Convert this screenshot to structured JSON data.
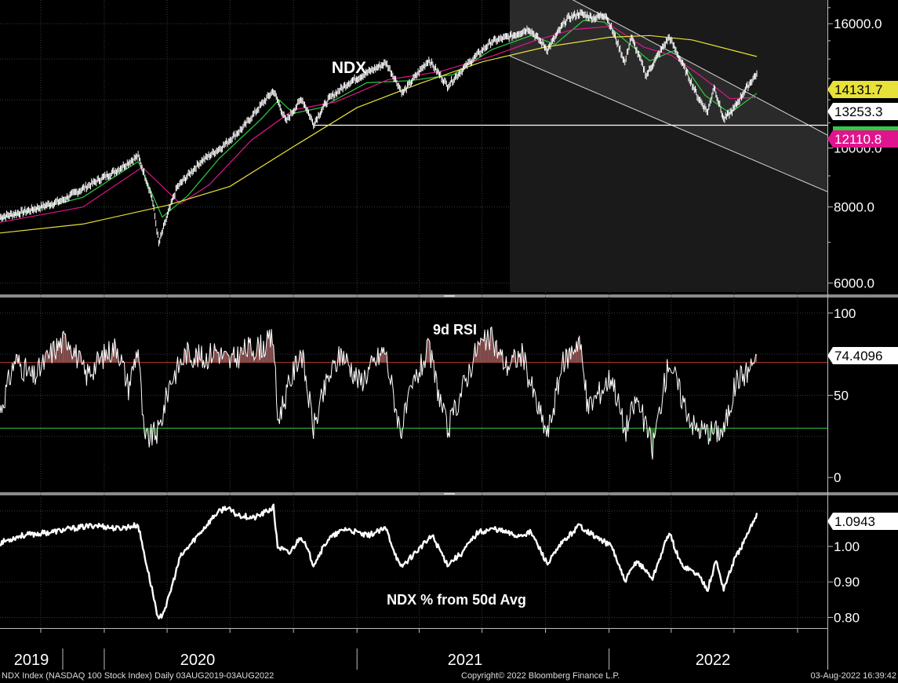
{
  "footer": {
    "left": "NDX Index (NASDAQ 100 Stock Index)  Daily 03AUG2019-03AUG2022",
    "center": "Copyright© 2022 Bloomberg Finance L.P.",
    "right": "03-Aug-2022 16:39:42"
  },
  "colors": {
    "background": "#000000",
    "price": "#ffffff",
    "ma20": "#2ecc40",
    "ma50": "#e0148c",
    "ma200": "#e8e13a",
    "rsi_upper": "#c0392b",
    "rsi_lower": "#2ecc40",
    "channel_fill": "#2a2a2a",
    "support_line": "#ffffff"
  },
  "chart_data": [
    {
      "type": "line",
      "title": "NDX",
      "x_axis": {
        "range": [
          "2019-08-03",
          "2022-08-03"
        ],
        "tick_labels": [
          "2019",
          "2020",
          "2021",
          "2022"
        ]
      },
      "y_axis": {
        "ticks": [
          "16000.0",
          "10000.0",
          "8000.0",
          "6000.0"
        ],
        "range": [
          5800,
          17500
        ],
        "scale": "log"
      },
      "series": [
        {
          "kind": "price-bars",
          "color": "#ffffff",
          "last": "13253.3",
          "points": [
            [
              "2019-08-03",
              7700
            ],
            [
              "2019-09-15",
              7900
            ],
            [
              "2019-11-01",
              8200
            ],
            [
              "2019-12-15",
              8750
            ],
            [
              "2020-01-20",
              9200
            ],
            [
              "2020-02-19",
              9700
            ],
            [
              "2020-03-10",
              8300
            ],
            [
              "2020-03-20",
              6960
            ],
            [
              "2020-04-15",
              8600
            ],
            [
              "2020-05-20",
              9500
            ],
            [
              "2020-06-20",
              10050
            ],
            [
              "2020-07-20",
              10800
            ],
            [
              "2020-09-02",
              12420
            ],
            [
              "2020-09-20",
              11050
            ],
            [
              "2020-10-13",
              12050
            ],
            [
              "2020-10-30",
              10950
            ],
            [
              "2020-11-20",
              12000
            ],
            [
              "2020-12-20",
              12800
            ],
            [
              "2021-02-12",
              13800
            ],
            [
              "2021-03-08",
              12300
            ],
            [
              "2021-04-15",
              13950
            ],
            [
              "2021-05-12",
              12650
            ],
            [
              "2021-06-15",
              13900
            ],
            [
              "2021-07-15",
              14950
            ],
            [
              "2021-08-15",
              15300
            ],
            [
              "2021-09-07",
              15700
            ],
            [
              "2021-10-04",
              14500
            ],
            [
              "2021-11-01",
              16300
            ],
            [
              "2021-11-19",
              16630
            ],
            [
              "2021-12-10",
              16350
            ],
            [
              "2021-12-27",
              16570
            ],
            [
              "2022-01-24",
              13800
            ],
            [
              "2022-02-02",
              15200
            ],
            [
              "2022-02-24",
              13150
            ],
            [
              "2022-03-29",
              15200
            ],
            [
              "2022-04-15",
              13900
            ],
            [
              "2022-05-10",
              12100
            ],
            [
              "2022-05-24",
              11450
            ],
            [
              "2022-06-02",
              12620
            ],
            [
              "2022-06-16",
              11130
            ],
            [
              "2022-07-01",
              11600
            ],
            [
              "2022-07-20",
              12600
            ],
            [
              "2022-08-03",
              13253.3
            ]
          ]
        },
        {
          "name": "",
          "kind": "ma20",
          "color": "#2ecc40",
          "points": [
            [
              "2019-08-03",
              7650
            ],
            [
              "2019-12-01",
              8300
            ],
            [
              "2020-02-19",
              9500
            ],
            [
              "2020-03-25",
              7700
            ],
            [
              "2020-05-01",
              8350
            ],
            [
              "2020-06-15",
              9600
            ],
            [
              "2020-08-15",
              11150
            ],
            [
              "2020-09-10",
              12000
            ],
            [
              "2020-10-01",
              11400
            ],
            [
              "2020-11-10",
              11650
            ],
            [
              "2021-01-15",
              12800
            ],
            [
              "2021-03-20",
              12900
            ],
            [
              "2021-05-20",
              13200
            ],
            [
              "2021-07-15",
              14500
            ],
            [
              "2021-09-10",
              15300
            ],
            [
              "2021-10-15",
              14800
            ],
            [
              "2021-11-25",
              16200
            ],
            [
              "2021-12-25",
              16100
            ],
            [
              "2022-01-25",
              15000
            ],
            [
              "2022-03-01",
              13900
            ],
            [
              "2022-04-05",
              14450
            ],
            [
              "2022-05-20",
              12200
            ],
            [
              "2022-06-25",
              11400
            ],
            [
              "2022-08-03",
              12300
            ]
          ]
        },
        {
          "name": "",
          "kind": "ma50",
          "color": "#e0148c",
          "last": "12110.8",
          "points": [
            [
              "2019-08-03",
              7550
            ],
            [
              "2019-12-01",
              8000
            ],
            [
              "2020-02-25",
              9300
            ],
            [
              "2020-04-20",
              8100
            ],
            [
              "2020-06-01",
              8700
            ],
            [
              "2020-08-01",
              10300
            ],
            [
              "2020-10-01",
              11550
            ],
            [
              "2020-12-01",
              11900
            ],
            [
              "2021-02-15",
              12950
            ],
            [
              "2021-05-01",
              13350
            ],
            [
              "2021-07-15",
              14150
            ],
            [
              "2021-09-15",
              15000
            ],
            [
              "2021-11-10",
              15650
            ],
            [
              "2022-01-05",
              15850
            ],
            [
              "2022-02-20",
              14650
            ],
            [
              "2022-04-01",
              14200
            ],
            [
              "2022-05-15",
              13100
            ],
            [
              "2022-06-25",
              12050
            ],
            [
              "2022-08-03",
              12110.8
            ]
          ]
        },
        {
          "name": "",
          "kind": "ma200",
          "color": "#e8e13a",
          "last": "14131.7",
          "points": [
            [
              "2019-08-03",
              7250
            ],
            [
              "2019-12-01",
              7500
            ],
            [
              "2020-04-01",
              8050
            ],
            [
              "2020-07-01",
              8650
            ],
            [
              "2020-10-01",
              10050
            ],
            [
              "2021-01-01",
              11650
            ],
            [
              "2021-04-01",
              12750
            ],
            [
              "2021-07-01",
              13850
            ],
            [
              "2021-10-01",
              14650
            ],
            [
              "2022-01-01",
              15200
            ],
            [
              "2022-03-01",
              15300
            ],
            [
              "2022-05-01",
              15050
            ],
            [
              "2022-08-03",
              14131.7
            ]
          ]
        }
      ],
      "annotations": [
        {
          "kind": "horizontal-support",
          "y": 10900,
          "from": "2020-10-30",
          "to": "2022-08-03"
        },
        {
          "kind": "downtrend-channel",
          "top": [
            [
              "2021-11-10",
              17500
            ],
            [
              "2022-08-03",
              12100
            ]
          ],
          "bottom": [
            [
              "2021-07-20",
              14500
            ],
            [
              "2022-08-03",
              9500
            ]
          ]
        }
      ]
    },
    {
      "type": "line",
      "title": "9d RSI",
      "y_axis": {
        "ticks": [
          "100",
          "50",
          "0"
        ],
        "range": [
          -8,
          108
        ]
      },
      "reference_lines": [
        {
          "y": 70,
          "color": "#c0392b"
        },
        {
          "y": 30,
          "color": "#2ecc40"
        }
      ],
      "series": [
        {
          "kind": "rsi",
          "color": "#ffffff",
          "last": "74.4096",
          "points": [
            [
              "2019-08-03",
              40
            ],
            [
              "2019-08-25",
              72
            ],
            [
              "2019-09-20",
              60
            ],
            [
              "2019-10-20",
              78
            ],
            [
              "2019-11-10",
              85
            ],
            [
              "2019-12-05",
              62
            ],
            [
              "2020-01-05",
              76
            ],
            [
              "2020-01-20",
              80
            ],
            [
              "2020-02-05",
              55
            ],
            [
              "2020-02-19",
              80
            ],
            [
              "2020-02-28",
              22
            ],
            [
              "2020-03-20",
              28
            ],
            [
              "2020-04-05",
              58
            ],
            [
              "2020-04-29",
              76
            ],
            [
              "2020-05-25",
              72
            ],
            [
              "2020-06-10",
              78
            ],
            [
              "2020-07-01",
              70
            ],
            [
              "2020-07-25",
              78
            ],
            [
              "2020-08-20",
              80
            ],
            [
              "2020-09-02",
              85
            ],
            [
              "2020-09-08",
              35
            ],
            [
              "2020-10-12",
              78
            ],
            [
              "2020-10-30",
              30
            ],
            [
              "2020-11-20",
              60
            ],
            [
              "2020-12-10",
              76
            ],
            [
              "2021-01-05",
              58
            ],
            [
              "2021-02-10",
              78
            ],
            [
              "2021-03-05",
              28
            ],
            [
              "2021-03-25",
              58
            ],
            [
              "2021-04-15",
              78
            ],
            [
              "2021-05-12",
              28
            ],
            [
              "2021-06-01",
              52
            ],
            [
              "2021-06-25",
              80
            ],
            [
              "2021-07-15",
              84
            ],
            [
              "2021-08-05",
              68
            ],
            [
              "2021-08-28",
              75
            ],
            [
              "2021-09-20",
              42
            ],
            [
              "2021-10-04",
              26
            ],
            [
              "2021-10-25",
              68
            ],
            [
              "2021-11-19",
              85
            ],
            [
              "2021-12-01",
              42
            ],
            [
              "2022-01-05",
              62
            ],
            [
              "2022-01-24",
              28
            ],
            [
              "2022-02-10",
              48
            ],
            [
              "2022-03-05",
              18
            ],
            [
              "2022-03-29",
              72
            ],
            [
              "2022-04-15",
              50
            ],
            [
              "2022-05-05",
              30
            ],
            [
              "2022-05-25",
              28
            ],
            [
              "2022-06-16",
              28
            ],
            [
              "2022-07-05",
              60
            ],
            [
              "2022-07-20",
              64
            ],
            [
              "2022-08-03",
              74.4096
            ]
          ]
        }
      ]
    },
    {
      "type": "line",
      "title": "NDX % from 50d Avg",
      "y_axis": {
        "ticks": [
          "1.00",
          "0.90",
          "0.80"
        ],
        "range": [
          0.77,
          1.135
        ]
      },
      "series": [
        {
          "kind": "ratio",
          "color": "#ffffff",
          "last": "1.0943",
          "points": [
            [
              "2019-08-03",
              1.01
            ],
            [
              "2019-09-01",
              1.03
            ],
            [
              "2019-10-15",
              1.04
            ],
            [
              "2019-11-15",
              1.05
            ],
            [
              "2019-12-20",
              1.06
            ],
            [
              "2020-01-20",
              1.05
            ],
            [
              "2020-02-19",
              1.06
            ],
            [
              "2020-03-01",
              0.96
            ],
            [
              "2020-03-10",
              0.88
            ],
            [
              "2020-03-20",
              0.79
            ],
            [
              "2020-04-01",
              0.84
            ],
            [
              "2020-04-20",
              0.97
            ],
            [
              "2020-05-15",
              1.03
            ],
            [
              "2020-06-10",
              1.09
            ],
            [
              "2020-06-25",
              1.11
            ],
            [
              "2020-07-10",
              1.09
            ],
            [
              "2020-08-05",
              1.08
            ],
            [
              "2020-08-25",
              1.1
            ],
            [
              "2020-09-02",
              1.11
            ],
            [
              "2020-09-08",
              1.0
            ],
            [
              "2020-09-25",
              0.98
            ],
            [
              "2020-10-12",
              1.03
            ],
            [
              "2020-10-30",
              0.95
            ],
            [
              "2020-11-20",
              1.02
            ],
            [
              "2020-12-15",
              1.05
            ],
            [
              "2021-01-15",
              1.03
            ],
            [
              "2021-02-12",
              1.05
            ],
            [
              "2021-03-05",
              0.94
            ],
            [
              "2021-03-25",
              0.98
            ],
            [
              "2021-04-20",
              1.03
            ],
            [
              "2021-05-12",
              0.95
            ],
            [
              "2021-06-01",
              0.98
            ],
            [
              "2021-06-25",
              1.04
            ],
            [
              "2021-07-20",
              1.05
            ],
            [
              "2021-08-20",
              1.03
            ],
            [
              "2021-09-10",
              1.04
            ],
            [
              "2021-10-04",
              0.95
            ],
            [
              "2021-10-25",
              1.01
            ],
            [
              "2021-11-19",
              1.06
            ],
            [
              "2021-12-10",
              1.03
            ],
            [
              "2022-01-05",
              1.0
            ],
            [
              "2022-01-24",
              0.9
            ],
            [
              "2022-02-10",
              0.96
            ],
            [
              "2022-03-05",
              0.91
            ],
            [
              "2022-03-29",
              1.04
            ],
            [
              "2022-04-15",
              0.95
            ],
            [
              "2022-05-10",
              0.92
            ],
            [
              "2022-05-24",
              0.88
            ],
            [
              "2022-06-05",
              0.96
            ],
            [
              "2022-06-16",
              0.88
            ],
            [
              "2022-07-01",
              0.96
            ],
            [
              "2022-07-20",
              1.03
            ],
            [
              "2022-08-03",
              1.0943
            ]
          ]
        }
      ]
    }
  ]
}
